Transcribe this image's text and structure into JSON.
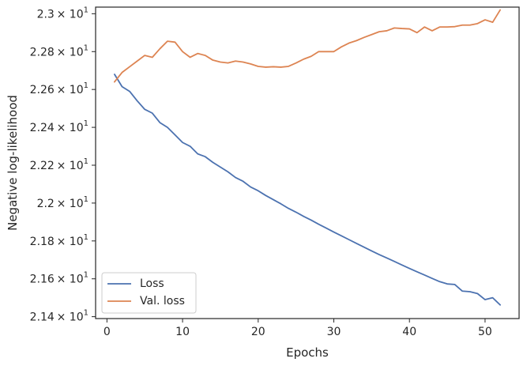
{
  "chart_data": {
    "type": "line",
    "xlabel": "Epochs",
    "ylabel": "Negative log-likelihood",
    "xlim": [
      -1.5,
      54.5
    ],
    "ylim": [
      21.39,
      23.035
    ],
    "x_ticks": [
      0,
      10,
      20,
      30,
      40,
      50
    ],
    "y_ticks": [
      {
        "value": 21.4,
        "mantissa": "2.14"
      },
      {
        "value": 21.6,
        "mantissa": "2.16"
      },
      {
        "value": 21.8,
        "mantissa": "2.18"
      },
      {
        "value": 22.0,
        "mantissa": "2.2"
      },
      {
        "value": 22.2,
        "mantissa": "2.22"
      },
      {
        "value": 22.4,
        "mantissa": "2.24"
      },
      {
        "value": 22.6,
        "mantissa": "2.26"
      },
      {
        "value": 22.8,
        "mantissa": "2.28"
      },
      {
        "value": 23.0,
        "mantissa": "2.3"
      }
    ],
    "y_tick_suffix": "× 10",
    "y_tick_exponent": "1",
    "grid": false,
    "legend_position": "lower-left",
    "x": [
      1,
      2,
      3,
      4,
      5,
      6,
      7,
      8,
      9,
      10,
      11,
      12,
      13,
      14,
      15,
      16,
      17,
      18,
      19,
      20,
      21,
      22,
      23,
      24,
      25,
      26,
      27,
      28,
      29,
      30,
      31,
      32,
      33,
      34,
      35,
      36,
      37,
      38,
      39,
      40,
      41,
      42,
      43,
      44,
      45,
      46,
      47,
      48,
      49,
      50,
      51,
      52
    ],
    "series": [
      {
        "name": "Loss",
        "color": "#4c72b0",
        "values": [
          22.68,
          22.615,
          22.59,
          22.54,
          22.495,
          22.475,
          22.425,
          22.4,
          22.36,
          22.32,
          22.3,
          22.26,
          22.245,
          22.215,
          22.19,
          22.165,
          22.135,
          22.115,
          22.085,
          22.065,
          22.04,
          22.018,
          21.996,
          21.972,
          21.952,
          21.93,
          21.91,
          21.888,
          21.868,
          21.847,
          21.827,
          21.807,
          21.787,
          21.767,
          21.747,
          21.728,
          21.71,
          21.692,
          21.673,
          21.655,
          21.637,
          21.62,
          21.602,
          21.585,
          21.573,
          21.57,
          21.535,
          21.532,
          21.522,
          21.49,
          21.5,
          21.462
        ]
      },
      {
        "name": "Val. loss",
        "color": "#dd8452",
        "values": [
          22.64,
          22.69,
          22.72,
          22.75,
          22.78,
          22.77,
          22.815,
          22.855,
          22.85,
          22.8,
          22.77,
          22.79,
          22.78,
          22.755,
          22.745,
          22.74,
          22.75,
          22.745,
          22.735,
          22.722,
          22.718,
          22.72,
          22.718,
          22.722,
          22.74,
          22.76,
          22.775,
          22.8,
          22.8,
          22.8,
          22.825,
          22.845,
          22.858,
          22.875,
          22.89,
          22.905,
          22.91,
          22.925,
          22.922,
          22.92,
          22.9,
          22.93,
          22.91,
          22.93,
          22.93,
          22.932,
          22.94,
          22.94,
          22.948,
          22.968,
          22.955,
          23.02
        ]
      }
    ]
  }
}
